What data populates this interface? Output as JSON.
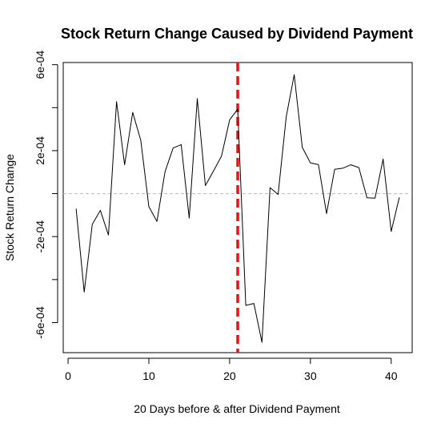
{
  "chart_data": {
    "type": "line",
    "title": "Stock Return Change Caused by Dividend Payment",
    "xlabel": "20 Days before & after Dividend Payment",
    "ylabel": "Stock Return Change",
    "xlim": [
      -0.6,
      42.6
    ],
    "ylim": [
      -0.00074,
      0.00061
    ],
    "x_ticks": [
      0,
      10,
      20,
      30,
      40
    ],
    "x_tick_labels": [
      "0",
      "10",
      "20",
      "30",
      "40"
    ],
    "y_ticks": [
      -0.0006,
      -0.0002,
      0.0002,
      0.0006
    ],
    "y_tick_labels": [
      "-6e-04",
      "-2e-04",
      "2e-04",
      "6e-04"
    ],
    "y_minor_ticks": [
      -0.0004,
      0.0,
      0.0004
    ],
    "reference_lines": [
      {
        "axis": "y",
        "value": 0,
        "style": "dashed",
        "color": "#bbbbbb"
      },
      {
        "axis": "x",
        "value": 21,
        "style": "dashed",
        "color": "#ee1111"
      }
    ],
    "series": [
      {
        "color": "#000000",
        "x": [
          1,
          2,
          3,
          4,
          5,
          6,
          7,
          8,
          9,
          10,
          11,
          12,
          13,
          14,
          15,
          16,
          17,
          18,
          19,
          20,
          21,
          22,
          23,
          24,
          25,
          26,
          27,
          28,
          29,
          30,
          31,
          32,
          33,
          34,
          35,
          36,
          37,
          38,
          39,
          40,
          41
        ],
        "y": [
          -7e-05,
          -0.000458,
          -0.000143,
          -7.8e-05,
          -0.000193,
          0.000428,
          0.000134,
          0.000378,
          0.000248,
          -6.1e-05,
          -0.000129,
          0.000102,
          0.000212,
          0.000228,
          -0.000114,
          0.000442,
          3.7e-05,
          0.000105,
          0.000175,
          0.000343,
          0.000393,
          -0.00052,
          -0.000511,
          -0.000692,
          2.8e-05,
          -4e-06,
          0.000357,
          0.000553,
          0.000215,
          0.000143,
          0.000135,
          -9.3e-05,
          0.000113,
          0.000118,
          0.000134,
          0.000121,
          -1.9e-05,
          -2.1e-05,
          0.000161,
          -0.000176,
          -1.8e-05
        ]
      }
    ]
  }
}
